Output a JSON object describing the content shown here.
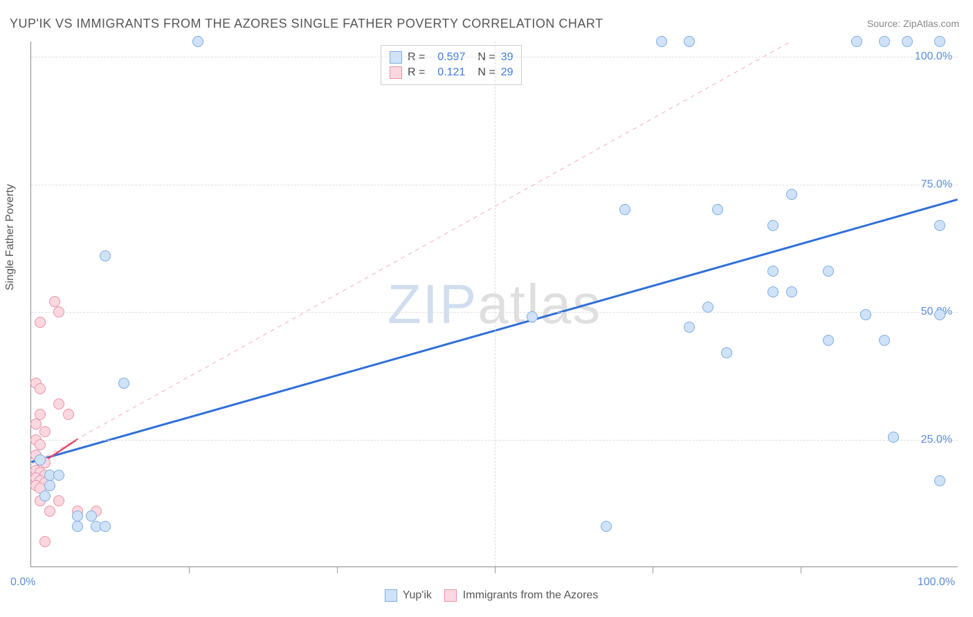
{
  "title": "YUP'IK VS IMMIGRANTS FROM THE AZORES SINGLE FATHER POVERTY CORRELATION CHART",
  "source": "Source: ZipAtlas.com",
  "y_axis_label": "Single Father Poverty",
  "watermark_prefix": "ZIP",
  "watermark_suffix": "atlas",
  "chart": {
    "type": "scatter",
    "xlim": [
      0,
      100
    ],
    "ylim": [
      0,
      103
    ],
    "x_ticks": [
      0,
      50,
      100
    ],
    "x_tick_sub": [
      17,
      33,
      67,
      83
    ],
    "y_ticks": [
      25,
      50,
      75,
      100
    ],
    "x_tick_labels": {
      "0": "0.0%",
      "100": "100.0%"
    },
    "y_tick_labels": {
      "25": "25.0%",
      "50": "50.0%",
      "75": "75.0%",
      "100": "100.0%"
    },
    "grid_color": "#dddddd",
    "axis_color": "#888888",
    "background_color": "#ffffff",
    "point_radius": 8,
    "point_border_width": 1.2,
    "series": [
      {
        "name": "Yup'ik",
        "color_fill": "#cfe2f8",
        "color_stroke": "#7fabdf",
        "R": "0.597",
        "N": "39",
        "trend": {
          "x1": 0,
          "y1": 20.5,
          "x2": 100,
          "y2": 72,
          "stroke": "#2e6fd8",
          "width": 3,
          "dash": "none"
        },
        "ref_line": {
          "x1": 0,
          "y1": 20,
          "x2": 82,
          "y2": 103,
          "stroke": "#f5b8c4",
          "width": 1.2,
          "dash": "6,6"
        },
        "points": [
          [
            18,
            103
          ],
          [
            68,
            103
          ],
          [
            71,
            103
          ],
          [
            89,
            103
          ],
          [
            92,
            103
          ],
          [
            94.5,
            103
          ],
          [
            98,
            103
          ],
          [
            82,
            73
          ],
          [
            64,
            70
          ],
          [
            74,
            70
          ],
          [
            80,
            67
          ],
          [
            98,
            67
          ],
          [
            8,
            61
          ],
          [
            80,
            58
          ],
          [
            86,
            58
          ],
          [
            80,
            54
          ],
          [
            82,
            54
          ],
          [
            73,
            51
          ],
          [
            90,
            49.5
          ],
          [
            54,
            49
          ],
          [
            98,
            49.5
          ],
          [
            71,
            47
          ],
          [
            86,
            44.5
          ],
          [
            92,
            44.5
          ],
          [
            75,
            42
          ],
          [
            10,
            36
          ],
          [
            93,
            25.5
          ],
          [
            98,
            17
          ],
          [
            62,
            8
          ],
          [
            1,
            21
          ],
          [
            2,
            18
          ],
          [
            2,
            16
          ],
          [
            3,
            18
          ],
          [
            1.5,
            14
          ],
          [
            5,
            10
          ],
          [
            6.5,
            10
          ],
          [
            5,
            8
          ],
          [
            7,
            8
          ],
          [
            8,
            8
          ]
        ]
      },
      {
        "name": "Immigrants from the Azores",
        "color_fill": "#fbd8e0",
        "color_stroke": "#e991a6",
        "R": "0.121",
        "N": "29",
        "trend": {
          "x1": 0,
          "y1": 19,
          "x2": 5,
          "y2": 25,
          "stroke": "#e04a6b",
          "width": 2.5,
          "dash": "none"
        },
        "points": [
          [
            2.5,
            52
          ],
          [
            3,
            50
          ],
          [
            1,
            48
          ],
          [
            0.5,
            36
          ],
          [
            1,
            35
          ],
          [
            3,
            32
          ],
          [
            1,
            30
          ],
          [
            4,
            30
          ],
          [
            0.5,
            28
          ],
          [
            1.5,
            26.5
          ],
          [
            0.5,
            25
          ],
          [
            1,
            24
          ],
          [
            0.5,
            22
          ],
          [
            1,
            21
          ],
          [
            1.5,
            20.5
          ],
          [
            0.5,
            19
          ],
          [
            1,
            18.5
          ],
          [
            1.5,
            18
          ],
          [
            0.5,
            17.5
          ],
          [
            1,
            17
          ],
          [
            1.5,
            16.5
          ],
          [
            0.5,
            16
          ],
          [
            1,
            15.5
          ],
          [
            1,
            13
          ],
          [
            3,
            13
          ],
          [
            2,
            11
          ],
          [
            5,
            11
          ],
          [
            7,
            11
          ],
          [
            1.5,
            5
          ]
        ]
      }
    ]
  },
  "bottom_legend": [
    {
      "label": "Yup'ik",
      "fill": "#cfe2f8",
      "stroke": "#7fabdf"
    },
    {
      "label": "Immigrants from the Azores",
      "fill": "#fbd8e0",
      "stroke": "#e991a6"
    }
  ]
}
